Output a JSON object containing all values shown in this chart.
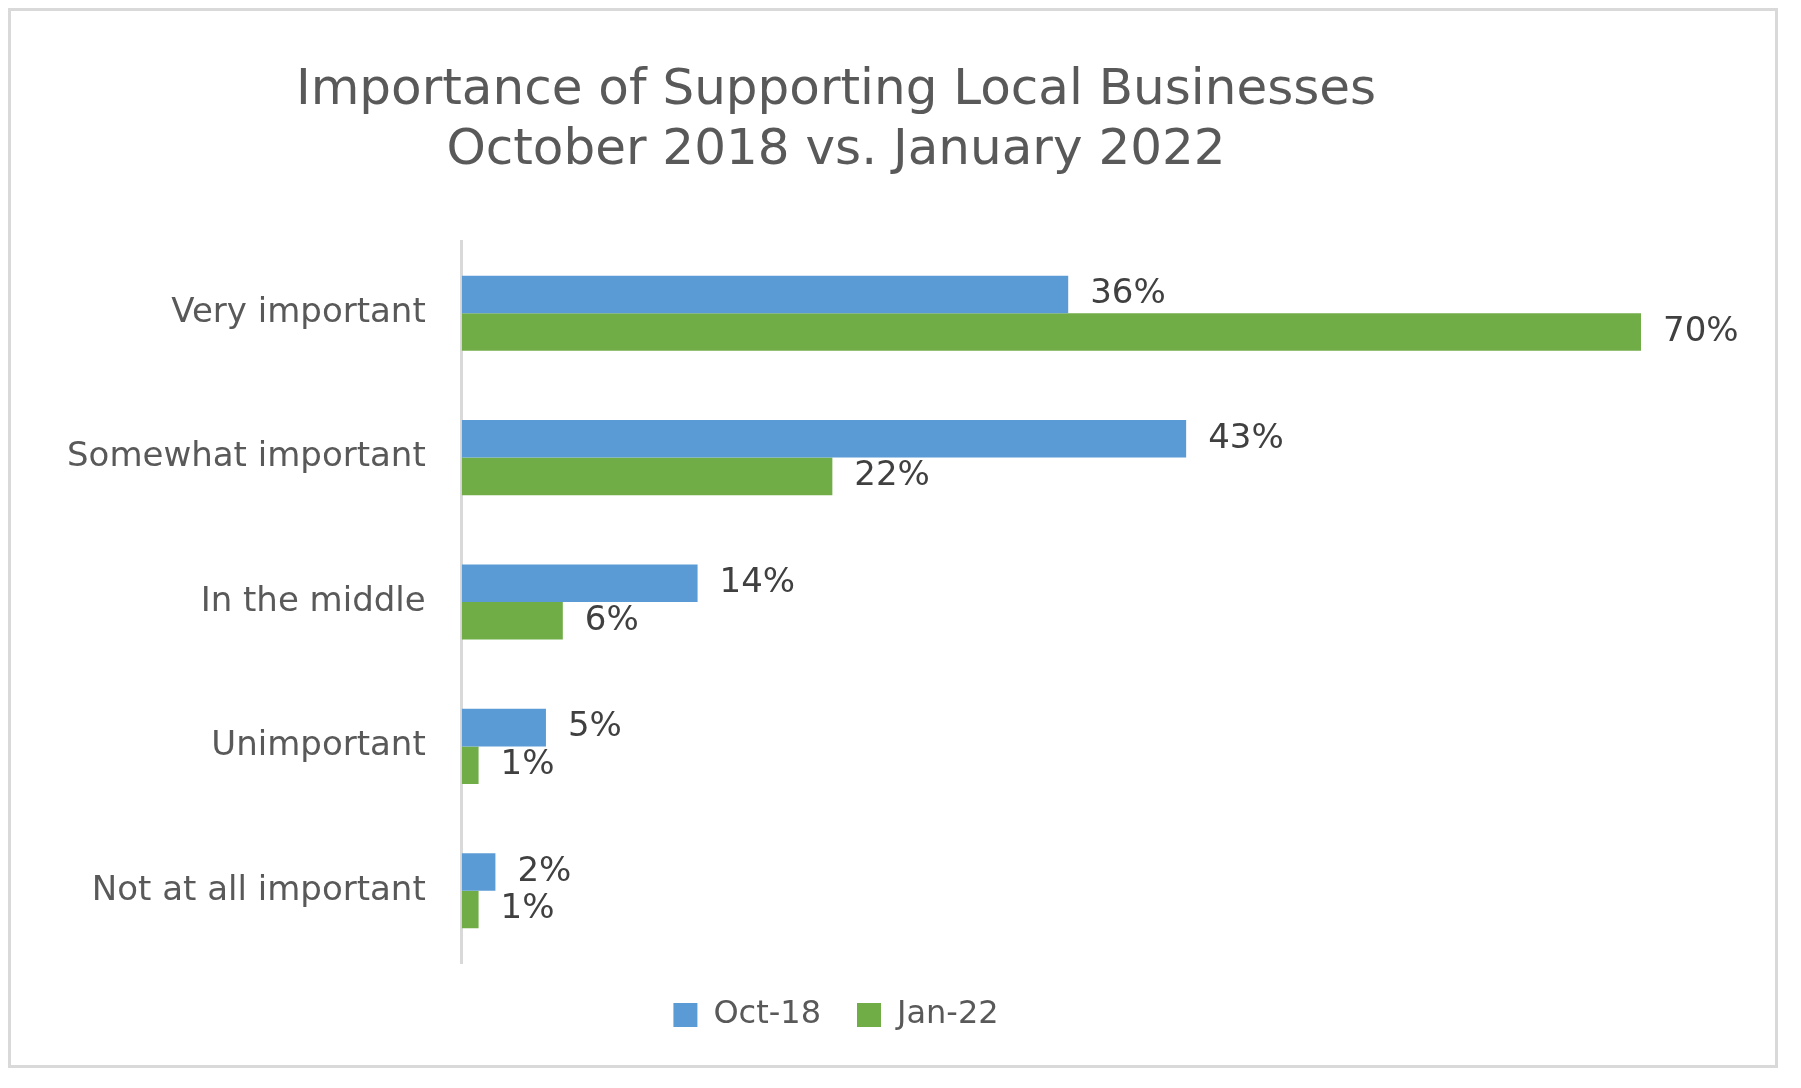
{
  "chart_data": {
    "type": "bar",
    "orientation": "horizontal",
    "title": "Importance of Supporting Local Businesses\nOctober 2018 vs. January 2022",
    "categories": [
      "Very important",
      "Somewhat important",
      "In the middle",
      "Unimportant",
      "Not at all important"
    ],
    "series": [
      {
        "name": "Oct-18",
        "color": "#5b9bd5",
        "values": [
          36,
          43,
          14,
          5,
          2
        ],
        "value_labels": [
          "36%",
          "43%",
          "14%",
          "5%",
          "2%"
        ]
      },
      {
        "name": "Jan-22",
        "color": "#70ad47",
        "values": [
          70,
          22,
          6,
          1,
          1
        ],
        "value_labels": [
          "70%",
          "22%",
          "6%",
          "1%",
          "1%"
        ]
      }
    ],
    "legend": "bottom",
    "grid": false,
    "tick_labels": "y"
  }
}
